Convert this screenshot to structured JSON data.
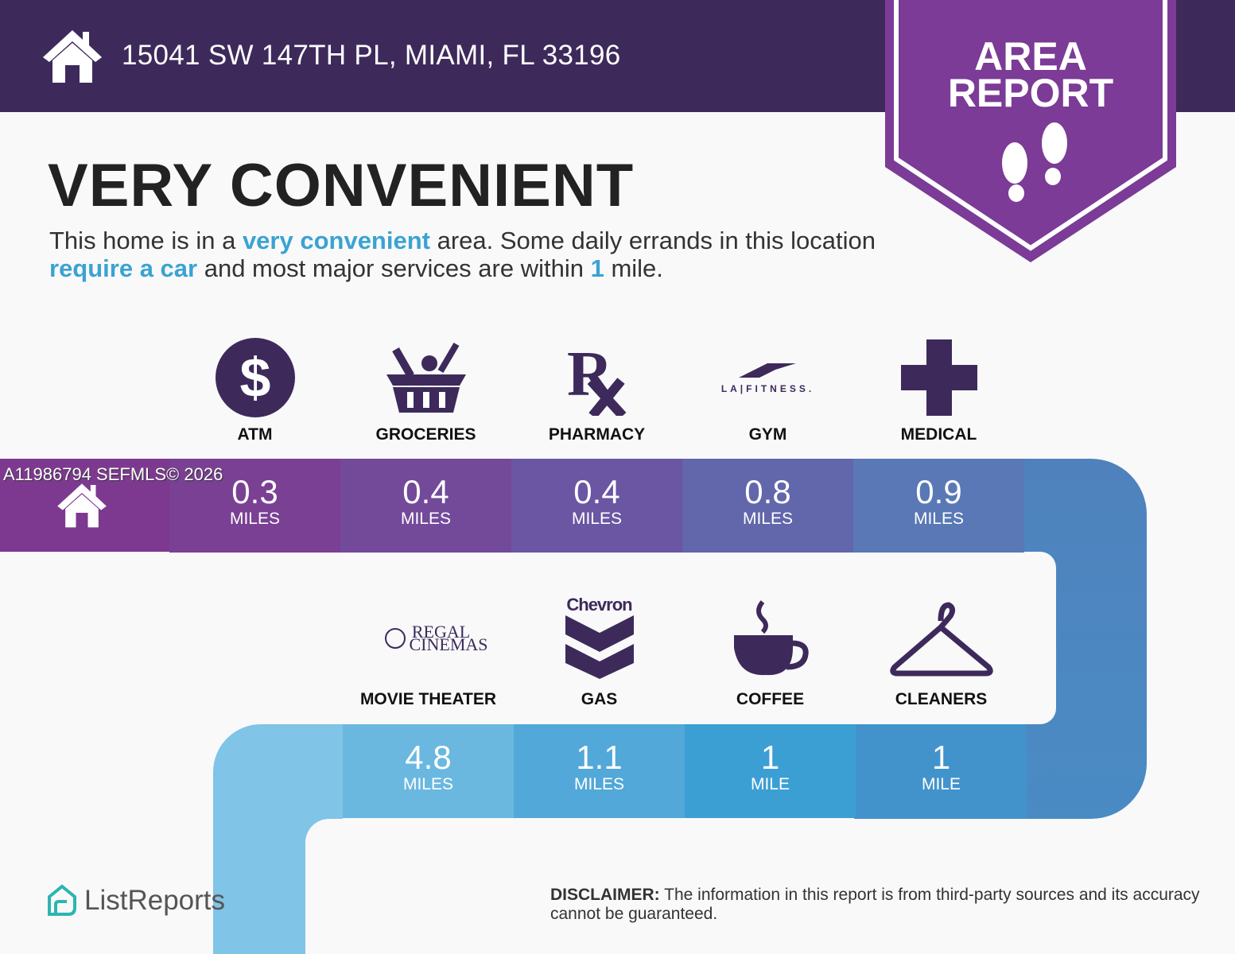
{
  "header": {
    "address": "15041 SW 147TH PL, MIAMI, FL 33196",
    "home_icon": "house-icon"
  },
  "badge": {
    "line1": "AREA",
    "line2": "REPORT",
    "icon": "footprints-icon",
    "color": "#7b3b96"
  },
  "title": "VERY CONVENIENT",
  "description": {
    "p1": "This home is in a ",
    "h1": "very convenient",
    "p2": " area. Some daily errands in this location ",
    "h2": "require a car",
    "p3": " and most major services are within ",
    "h3": "1",
    "p4": " mile."
  },
  "watermark": "A11986794  SEFMLS© 2026",
  "row1": [
    {
      "label": "ATM",
      "value": "0.3",
      "unit": "MILES",
      "icon": "dollar-icon",
      "color": "#7a4093"
    },
    {
      "label": "GROCERIES",
      "value": "0.4",
      "unit": "MILES",
      "icon": "grocery-basket-icon",
      "color": "#734a9a"
    },
    {
      "label": "PHARMACY",
      "value": "0.4",
      "unit": "MILES",
      "icon": "rx-icon",
      "color": "#6a56a3"
    },
    {
      "label": "GYM",
      "value": "0.8",
      "unit": "MILES",
      "icon": "la-fitness-logo",
      "logo_text": "LA|FITNESS.",
      "color": "#6266ab"
    },
    {
      "label": "MEDICAL",
      "value": "0.9",
      "unit": "MILES",
      "icon": "medical-cross-icon",
      "color": "#5978b5"
    }
  ],
  "row2": [
    {
      "label": "MOVIE THEATER",
      "value": "4.8",
      "unit": "MILES",
      "icon": "regal-cinemas-logo",
      "logo_text": "REGAL CINEMAS",
      "color": "#6ab8e0"
    },
    {
      "label": "GAS",
      "value": "1.1",
      "unit": "MILES",
      "icon": "chevron-logo",
      "logo_text": "Chevron",
      "color": "#52a8d8"
    },
    {
      "label": "COFFEE",
      "value": "1",
      "unit": "MILE",
      "icon": "coffee-cup-icon",
      "color": "#3c9fd4"
    },
    {
      "label": "CLEANERS",
      "value": "1",
      "unit": "MILE",
      "icon": "hanger-icon",
      "color": "#4293cc"
    }
  ],
  "footer": {
    "logo": "ListReports",
    "disclaimer_label": "DISCLAIMER:",
    "disclaimer": " The information in this report is from third-party sources and its accuracy cannot be guaranteed."
  }
}
